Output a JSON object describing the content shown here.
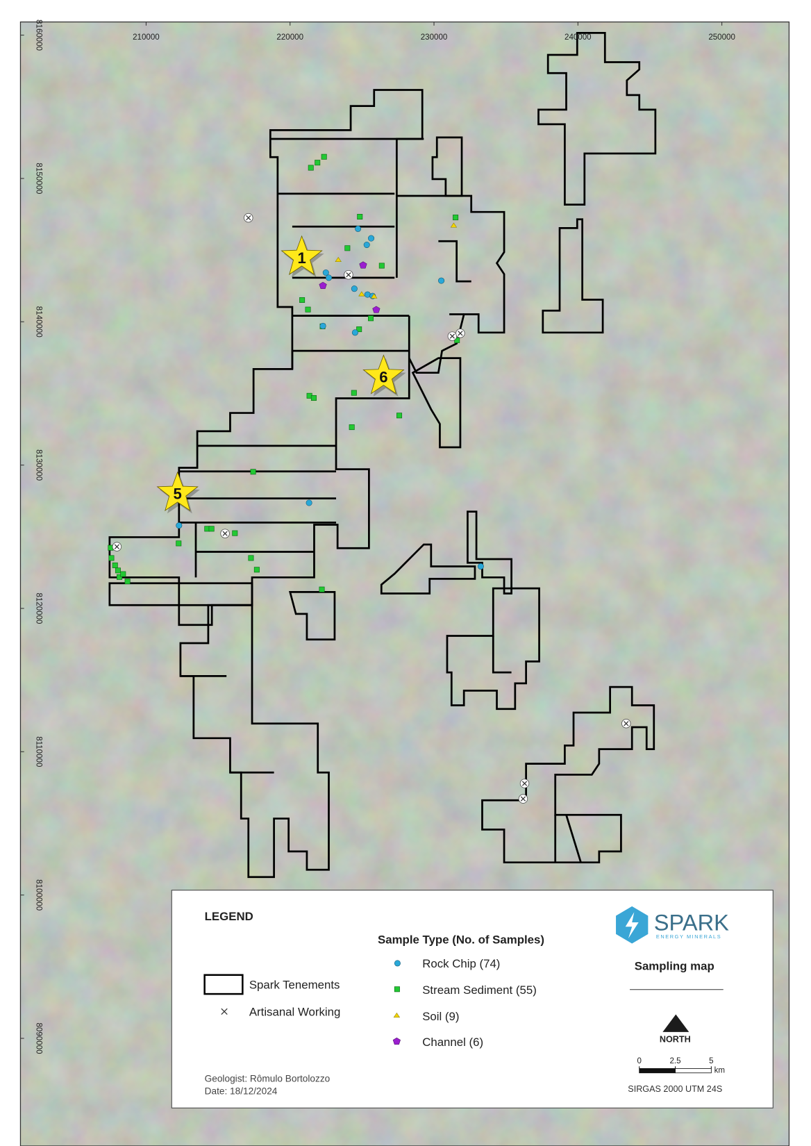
{
  "map": {
    "xlim": [
      201270,
      254670
    ],
    "ylim": [
      8082490,
      8160920
    ],
    "xticks": [
      210000,
      220000,
      230000,
      240000,
      250000
    ],
    "yticks": [
      8090000,
      8100000,
      8110000,
      8120000,
      8130000,
      8140000,
      8150000,
      8160000
    ]
  },
  "stars": [
    "1",
    "6",
    "5"
  ],
  "legend": {
    "title": "LEGEND",
    "tenements": "Spark Tenements",
    "artisanal": "Artisanal Working",
    "sample_heading": "Sample Type (No. of Samples)",
    "sample_types": [
      "Rock Chip (74)",
      "Stream Sediment (55)",
      "Soil (9)",
      "Channel (6)"
    ]
  },
  "credits": {
    "geologist": "Geologist: Rômulo Bortolozzo",
    "date": "Date: 18/12/2024"
  },
  "logo": {
    "name": "SPARK",
    "tagline": "ENERGY MINERALS"
  },
  "title": "Sampling map",
  "north": "NORTH",
  "scale_bar": {
    "ticks": [
      0,
      2.5,
      5
    ],
    "unit": "km"
  },
  "crs": "SIRGAS 2000  UTM 24S"
}
